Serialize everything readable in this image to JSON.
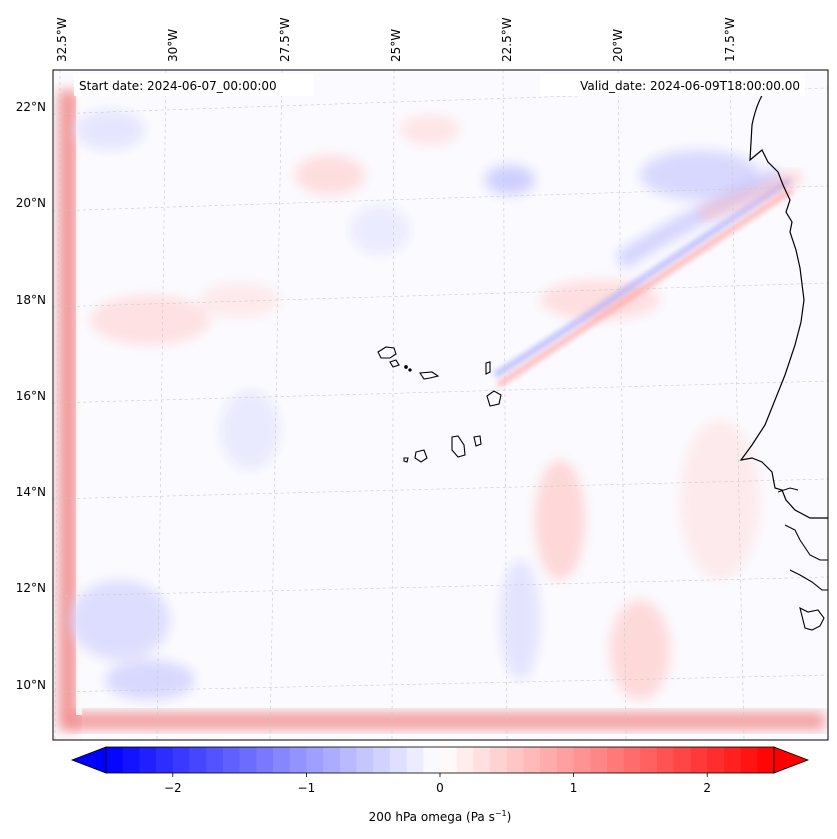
{
  "map": {
    "start_label": "Start date: 2024-06-07_00:00:00",
    "valid_label": "Valid_date: 2024-06-09T18:00:00.00",
    "lon_labels": [
      "32.5°W",
      "30°W",
      "27.5°W",
      "25°W",
      "22.5°W",
      "20°W",
      "17.5°W"
    ],
    "lat_labels": [
      "22°N",
      "20°N",
      "18°N",
      "16°N",
      "14°N",
      "12°N",
      "10°N"
    ]
  },
  "colorbar": {
    "label_main": "200 hPa omega (Pa s",
    "label_sup": "−1",
    "label_close": ")",
    "tick_labels": [
      "−2",
      "−1",
      "0",
      "1",
      "2"
    ],
    "ticks": [
      -2,
      -1,
      0,
      1,
      2
    ],
    "range": [
      -2.5,
      2.5
    ],
    "levels": 40,
    "extend": "both",
    "cmap": "bwr",
    "colors": {
      "negative": "#0000ff",
      "zero": "#ffffff",
      "positive": "#ff0000"
    }
  }
}
